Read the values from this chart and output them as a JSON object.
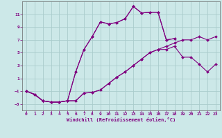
{
  "xlabel": "Windchill (Refroidissement éolien,°C)",
  "xlim": [
    -0.5,
    23.5
  ],
  "ylim": [
    -4,
    13
  ],
  "yticks": [
    -3,
    -1,
    1,
    3,
    5,
    7,
    9,
    11
  ],
  "xticks": [
    0,
    1,
    2,
    3,
    4,
    5,
    6,
    7,
    8,
    9,
    10,
    11,
    12,
    13,
    14,
    15,
    16,
    17,
    18,
    19,
    20,
    21,
    22,
    23
  ],
  "bg_color": "#cce8e8",
  "line_color": "#800080",
  "grid_color": "#aacccc",
  "line1_x": [
    0,
    1,
    2,
    3,
    4,
    5,
    6,
    7,
    8,
    9,
    10,
    11,
    12,
    13,
    14,
    15,
    16,
    17,
    18,
    19,
    20,
    21,
    22,
    23
  ],
  "line1_y": [
    -1,
    -1.5,
    -2.5,
    -2.7,
    -2.7,
    -2.5,
    -2.5,
    -1.3,
    -1.2,
    -0.8,
    0.2,
    1.2,
    2.0,
    3.0,
    4.0,
    5.0,
    5.5,
    6.0,
    6.5,
    7.0,
    7.0,
    7.5,
    7.0,
    7.5
  ],
  "line2_x": [
    0,
    1,
    2,
    3,
    4,
    5,
    6,
    7,
    8,
    9,
    10,
    11,
    12,
    13,
    14,
    15,
    16,
    17,
    18,
    19,
    20,
    21,
    22,
    23
  ],
  "line2_y": [
    -1,
    -1.5,
    -2.5,
    -2.7,
    -2.7,
    -2.5,
    -2.5,
    -1.3,
    -1.2,
    -0.8,
    0.2,
    1.2,
    2.0,
    3.0,
    4.0,
    5.0,
    5.5,
    5.5,
    6.0,
    4.3,
    4.3,
    3.2,
    2.0,
    3.2
  ],
  "line3_x": [
    0,
    1,
    2,
    3,
    4,
    5,
    6,
    7,
    8,
    9,
    10,
    11,
    12,
    13,
    14,
    15,
    16,
    17,
    18
  ],
  "line3_y": [
    -1,
    -1.5,
    -2.5,
    -2.7,
    -2.7,
    -2.5,
    2.0,
    5.5,
    7.5,
    9.8,
    9.5,
    9.7,
    10.3,
    12.2,
    11.2,
    11.3,
    11.3,
    7.0,
    7.2
  ],
  "line4_x": [
    0,
    1,
    2,
    3,
    4,
    5,
    6,
    7,
    8,
    9,
    10,
    11,
    12,
    13,
    14,
    15,
    16,
    17,
    18
  ],
  "line4_y": [
    -1,
    -1.5,
    -2.5,
    -2.7,
    -2.7,
    -2.5,
    2.0,
    5.5,
    7.5,
    9.8,
    9.5,
    9.7,
    10.3,
    12.2,
    11.2,
    11.3,
    11.3,
    7.0,
    7.2
  ]
}
